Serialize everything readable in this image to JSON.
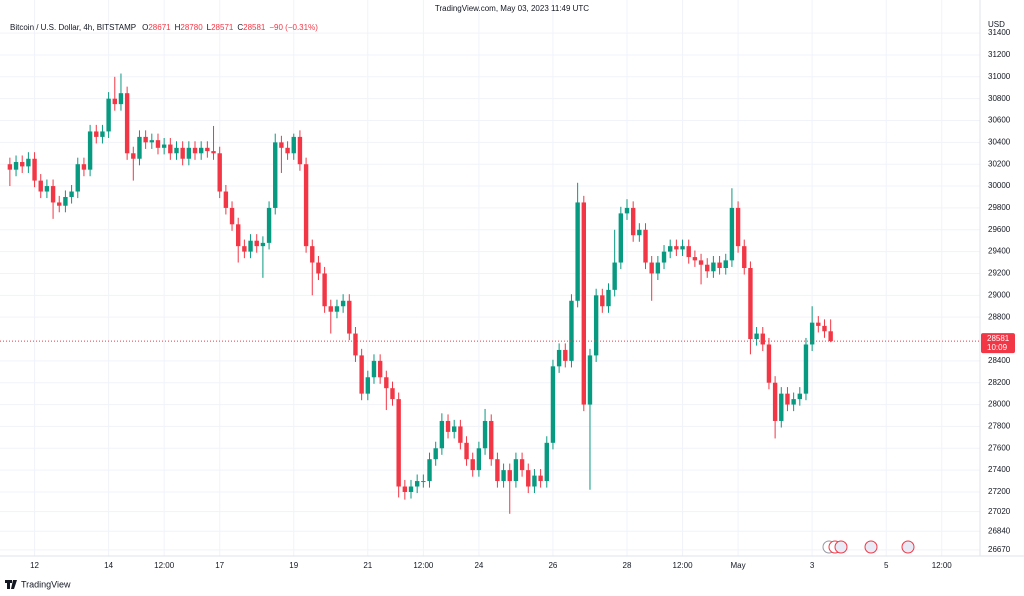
{
  "chart_data": {
    "type": "candlestick",
    "header": "TradingView.com, May 03, 2023 11:49 UTC",
    "title": "Bitcoin / U.S. Dollar, 4h, BITSTAMP",
    "ohlc_letters": [
      "O",
      "H",
      "L",
      "C"
    ],
    "change": "−90 (−0.31%)",
    "currency": "USD",
    "countdown": "10:09",
    "brand": "TradingView",
    "up_color": "#089981",
    "down_color": "#f23645",
    "grid": true,
    "xlim": [
      -1.6,
      157.2
    ],
    "ylim": [
      26614,
      31703
    ],
    "xticks": [
      {
        "value": 4,
        "label": "12"
      },
      {
        "value": 16,
        "label": "14"
      },
      {
        "value": 25,
        "label": "12:00"
      },
      {
        "value": 34,
        "label": "17"
      },
      {
        "value": 46,
        "label": "19"
      },
      {
        "value": 58,
        "label": "21"
      },
      {
        "value": 67,
        "label": "12:00"
      },
      {
        "value": 76,
        "label": "24"
      },
      {
        "value": 88,
        "label": "26"
      },
      {
        "value": 100,
        "label": "28"
      },
      {
        "value": 109,
        "label": "12:00"
      },
      {
        "value": 118,
        "label": "May"
      },
      {
        "value": 130,
        "label": "3"
      },
      {
        "value": 142,
        "label": "5"
      },
      {
        "value": 151,
        "label": "12:00"
      }
    ],
    "yticks": [
      31400,
      31200,
      31000,
      30800,
      30600,
      30400,
      30200,
      30000,
      29800,
      29600,
      29400,
      29200,
      29000,
      28800,
      28400,
      28200,
      28000,
      27800,
      27600,
      27400,
      27200,
      27020,
      26840,
      26670
    ],
    "candles": [
      [
        30200,
        30260,
        30000,
        30150
      ],
      [
        30150,
        30280,
        30090,
        30220
      ],
      [
        30220,
        30280,
        30120,
        30180
      ],
      [
        30180,
        30310,
        30120,
        30250
      ],
      [
        30250,
        30310,
        29990,
        30050
      ],
      [
        30050,
        30110,
        29890,
        29950
      ],
      [
        29950,
        30060,
        29890,
        30000
      ],
      [
        30000,
        30060,
        29700,
        29850
      ],
      [
        29850,
        29910,
        29760,
        29820
      ],
      [
        29820,
        29960,
        29760,
        29900
      ],
      [
        29900,
        30010,
        29840,
        29950
      ],
      [
        29950,
        30260,
        29890,
        30200
      ],
      [
        30200,
        30260,
        30090,
        30150
      ],
      [
        30150,
        30560,
        30090,
        30500
      ],
      [
        30500,
        30560,
        30390,
        30450
      ],
      [
        30450,
        30560,
        30390,
        30500
      ],
      [
        30500,
        30860,
        30440,
        30800
      ],
      [
        30800,
        31000,
        30690,
        30750
      ],
      [
        30750,
        31030,
        30690,
        30850
      ],
      [
        30850,
        30910,
        30240,
        30300
      ],
      [
        30300,
        30360,
        30050,
        30250
      ],
      [
        30250,
        30510,
        30190,
        30450
      ],
      [
        30450,
        30510,
        30340,
        30400
      ],
      [
        30400,
        30480,
        30340,
        30420
      ],
      [
        30420,
        30480,
        30290,
        30350
      ],
      [
        30350,
        30440,
        30290,
        30380
      ],
      [
        30380,
        30440,
        30240,
        30300
      ],
      [
        30300,
        30410,
        30240,
        30350
      ],
      [
        30350,
        30410,
        30190,
        30250
      ],
      [
        30250,
        30410,
        30190,
        30350
      ],
      [
        30350,
        30410,
        30240,
        30300
      ],
      [
        30300,
        30410,
        30240,
        30350
      ],
      [
        30350,
        30410,
        30260,
        30320
      ],
      [
        30320,
        30550,
        30240,
        30300
      ],
      [
        30300,
        30360,
        29890,
        29950
      ],
      [
        29950,
        30010,
        29740,
        29800
      ],
      [
        29800,
        29860,
        29590,
        29650
      ],
      [
        29650,
        29710,
        29300,
        29450
      ],
      [
        29450,
        29510,
        29340,
        29400
      ],
      [
        29400,
        29560,
        29340,
        29500
      ],
      [
        29500,
        29560,
        29390,
        29450
      ],
      [
        29450,
        29540,
        29160,
        29480
      ],
      [
        29480,
        29860,
        29420,
        29800
      ],
      [
        29800,
        30480,
        29740,
        30400
      ],
      [
        30400,
        30460,
        30120,
        30350
      ],
      [
        30350,
        30410,
        30240,
        30300
      ],
      [
        30300,
        30480,
        30240,
        30450
      ],
      [
        30450,
        30510,
        30140,
        30200
      ],
      [
        30200,
        30260,
        29390,
        29450
      ],
      [
        29450,
        29510,
        29000,
        29300
      ],
      [
        29300,
        29360,
        29140,
        29200
      ],
      [
        29200,
        29260,
        28840,
        28900
      ],
      [
        28900,
        28960,
        28650,
        28850
      ],
      [
        28850,
        28960,
        28790,
        28900
      ],
      [
        28900,
        29010,
        28840,
        28950
      ],
      [
        28950,
        29010,
        28590,
        28650
      ],
      [
        28650,
        28710,
        28390,
        28450
      ],
      [
        28450,
        28510,
        28040,
        28100
      ],
      [
        28100,
        28310,
        28040,
        28250
      ],
      [
        28250,
        28460,
        28190,
        28400
      ],
      [
        28400,
        28460,
        28190,
        28250
      ],
      [
        28250,
        28310,
        27950,
        28150
      ],
      [
        28150,
        28210,
        27990,
        28050
      ],
      [
        28050,
        28110,
        27150,
        27250
      ],
      [
        27250,
        27310,
        27130,
        27200
      ],
      [
        27200,
        27310,
        27140,
        27250
      ],
      [
        27250,
        27360,
        27190,
        27300
      ],
      [
        27300,
        27360,
        27240,
        27300
      ],
      [
        27300,
        27560,
        27240,
        27500
      ],
      [
        27500,
        27660,
        27440,
        27600
      ],
      [
        27600,
        27920,
        27540,
        27850
      ],
      [
        27850,
        27910,
        27690,
        27750
      ],
      [
        27750,
        27860,
        27690,
        27800
      ],
      [
        27800,
        27860,
        27590,
        27650
      ],
      [
        27650,
        27710,
        27440,
        27500
      ],
      [
        27500,
        27560,
        27340,
        27400
      ],
      [
        27400,
        27660,
        27340,
        27600
      ],
      [
        27600,
        27960,
        27540,
        27850
      ],
      [
        27850,
        27910,
        27440,
        27500
      ],
      [
        27500,
        27560,
        27240,
        27300
      ],
      [
        27300,
        27460,
        27240,
        27400
      ],
      [
        27400,
        27460,
        27000,
        27300
      ],
      [
        27300,
        27560,
        27240,
        27500
      ],
      [
        27500,
        27560,
        27340,
        27400
      ],
      [
        27400,
        27460,
        27190,
        27250
      ],
      [
        27250,
        27410,
        27190,
        27350
      ],
      [
        27350,
        27410,
        27240,
        27300
      ],
      [
        27300,
        27710,
        27240,
        27650
      ],
      [
        27650,
        28410,
        27590,
        28350
      ],
      [
        28350,
        28560,
        28290,
        28500
      ],
      [
        28500,
        28560,
        28340,
        28400
      ],
      [
        28400,
        29010,
        28340,
        28950
      ],
      [
        28950,
        30030,
        28890,
        29850
      ],
      [
        29850,
        29910,
        27940,
        28000
      ],
      [
        28000,
        28510,
        27220,
        28450
      ],
      [
        28450,
        29060,
        28390,
        29000
      ],
      [
        29000,
        29060,
        28840,
        28900
      ],
      [
        28900,
        29110,
        28840,
        29050
      ],
      [
        29050,
        29600,
        28990,
        29300
      ],
      [
        29300,
        29810,
        29240,
        29750
      ],
      [
        29750,
        29880,
        29690,
        29800
      ],
      [
        29800,
        29860,
        29490,
        29550
      ],
      [
        29550,
        29660,
        29490,
        29600
      ],
      [
        29600,
        29660,
        29240,
        29300
      ],
      [
        29300,
        29360,
        28950,
        29200
      ],
      [
        29200,
        29360,
        29140,
        29300
      ],
      [
        29300,
        29460,
        29240,
        29400
      ],
      [
        29400,
        29510,
        29340,
        29450
      ],
      [
        29450,
        29510,
        29360,
        29420
      ],
      [
        29420,
        29510,
        29360,
        29450
      ],
      [
        29450,
        29510,
        29290,
        29350
      ],
      [
        29350,
        29410,
        29260,
        29320
      ],
      [
        29320,
        29380,
        29100,
        29280
      ],
      [
        29280,
        29340,
        29160,
        29220
      ],
      [
        29220,
        29360,
        29160,
        29300
      ],
      [
        29300,
        29360,
        29190,
        29250
      ],
      [
        29250,
        29380,
        29190,
        29320
      ],
      [
        29320,
        29980,
        29260,
        29800
      ],
      [
        29800,
        29860,
        29390,
        29450
      ],
      [
        29450,
        29510,
        29190,
        29250
      ],
      [
        29250,
        29310,
        28460,
        28600
      ],
      [
        28600,
        28710,
        28540,
        28650
      ],
      [
        28650,
        28710,
        28490,
        28550
      ],
      [
        28550,
        28610,
        28140,
        28200
      ],
      [
        28200,
        28260,
        27690,
        27850
      ],
      [
        27850,
        28160,
        27790,
        28100
      ],
      [
        28100,
        28160,
        27940,
        28000
      ],
      [
        28000,
        28110,
        27940,
        28050
      ],
      [
        28050,
        28160,
        27990,
        28100
      ],
      [
        28100,
        28610,
        28040,
        28550
      ],
      [
        28550,
        28900,
        28490,
        28750
      ],
      [
        28750,
        28810,
        28660,
        28720
      ],
      [
        28720,
        28780,
        28611,
        28671
      ],
      [
        28671,
        28780,
        28571,
        28581
      ]
    ]
  }
}
